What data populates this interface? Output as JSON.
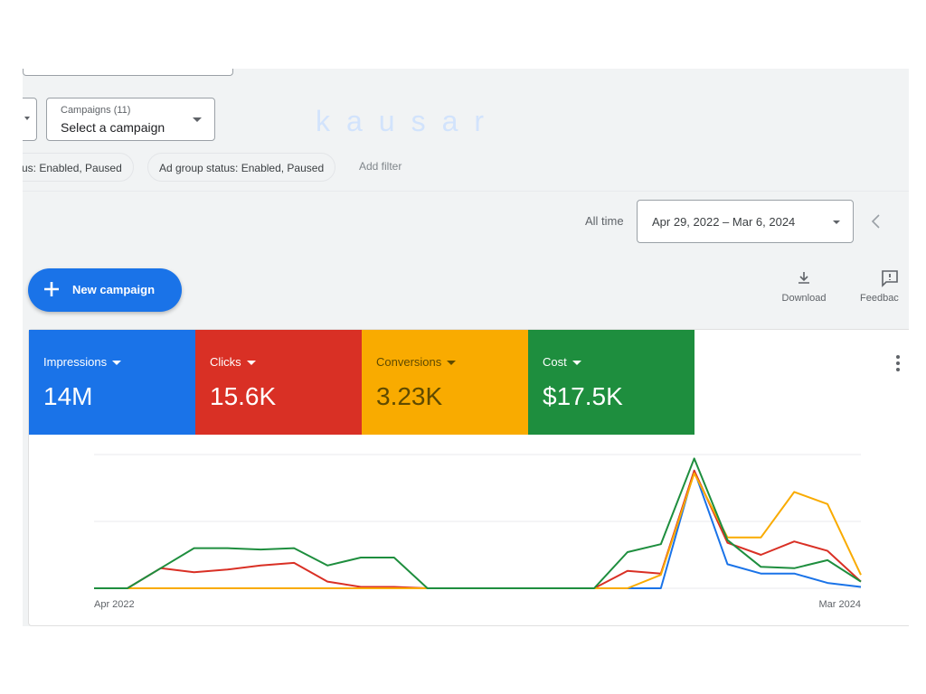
{
  "filters": {
    "campaigns_label": "Campaigns (11)",
    "campaign_value": "Select a campaign",
    "chip_status": "us: Enabled, Paused",
    "chip_adgroup": "Ad group status: Enabled, Paused",
    "add_filter": "Add filter"
  },
  "watermark": "kausar",
  "date_range": {
    "preset": "All time",
    "value": "Apr 29, 2022 – Mar 6, 2024"
  },
  "actions": {
    "new_campaign": "New campaign",
    "download": "Download",
    "feedback": "Feedbac"
  },
  "metrics": [
    {
      "label": "Impressions",
      "value": "14M",
      "color": "#1a73e8"
    },
    {
      "label": "Clicks",
      "value": "15.6K",
      "color": "#d93025"
    },
    {
      "label": "Conversions",
      "value": "3.23K",
      "color": "#f9ab00"
    },
    {
      "label": "Cost",
      "value": "$17.5K",
      "color": "#1e8e3e"
    }
  ],
  "chart_data": {
    "type": "line",
    "x_start_label": "Apr 2022",
    "x_end_label": "Mar 2024",
    "x": [
      0,
      1,
      2,
      3,
      4,
      5,
      6,
      7,
      8,
      9,
      10,
      11,
      12,
      13,
      14,
      15,
      16,
      17,
      18,
      19,
      20,
      21,
      22,
      23
    ],
    "ylim": [
      0,
      100
    ],
    "grid": true,
    "series": [
      {
        "color": "#1a73e8",
        "values": [
          0,
          0,
          0,
          0,
          0,
          0,
          0,
          0,
          0,
          0,
          0,
          0,
          0,
          0,
          0,
          0,
          0,
          0,
          88,
          18,
          11,
          11,
          4,
          1
        ]
      },
      {
        "color": "#d93025",
        "values": [
          0,
          0,
          15,
          12,
          14,
          17,
          19,
          5,
          1,
          1,
          0,
          0,
          0,
          0,
          0,
          0,
          13,
          11,
          88,
          34,
          25,
          35,
          28,
          5
        ]
      },
      {
        "color": "#f9ab00",
        "values": [
          0,
          0,
          0,
          0,
          0,
          0,
          0,
          0,
          0,
          0,
          0,
          0,
          0,
          0,
          0,
          0,
          0,
          10,
          86,
          38,
          38,
          72,
          63,
          10
        ]
      },
      {
        "color": "#1e8e3e",
        "values": [
          0,
          0,
          15,
          30,
          30,
          29,
          30,
          17,
          23,
          23,
          0,
          0,
          0,
          0,
          0,
          0,
          27,
          33,
          97,
          36,
          16,
          15,
          21,
          5
        ]
      }
    ]
  }
}
